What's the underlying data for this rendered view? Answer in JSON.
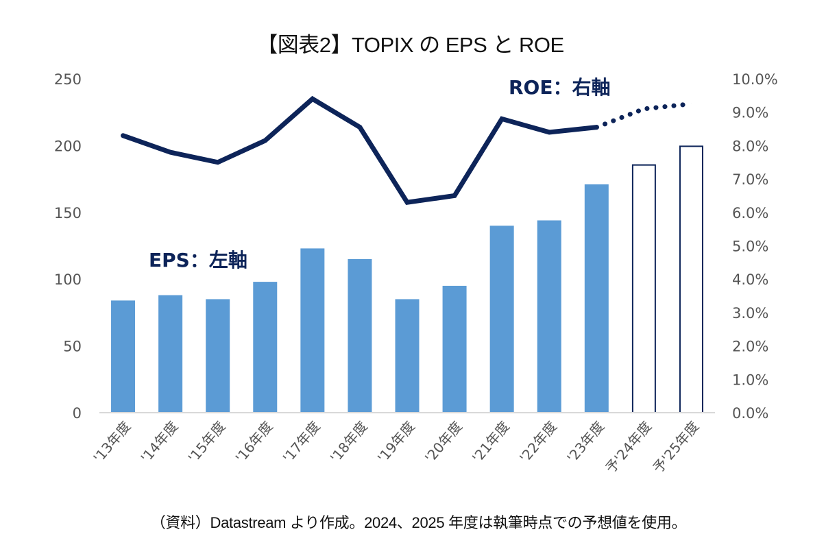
{
  "title": "【図表2】TOPIX の EPS と ROE",
  "source_note": "（資料）Datastream より作成。2024、2025 年度は執筆時点での予想値を使用。",
  "colors": {
    "bar_actual": "#5b9bd5",
    "bar_forecast_stroke": "#0d2459",
    "line": "#0d2459",
    "axis": "#d9d9d9",
    "tick_text": "#555555",
    "annotation": "#0d2459"
  },
  "chart_data": {
    "type": "bar+line",
    "title": "【図表2】TOPIX の EPS と ROE",
    "categories": [
      "'13年度",
      "'14年度",
      "'15年度",
      "'16年度",
      "'17年度",
      "'18年度",
      "'19年度",
      "'20年度",
      "'21年度",
      "'22年度",
      "'23年度",
      "予'24年度",
      "予'25年度"
    ],
    "forecast_flags": [
      false,
      false,
      false,
      false,
      false,
      false,
      false,
      false,
      false,
      false,
      false,
      true,
      true
    ],
    "series": [
      {
        "name": "EPS",
        "type": "bar",
        "axis": "left",
        "annotation": "EPS：左軸",
        "values": [
          84,
          88,
          85,
          98,
          123,
          115,
          85,
          95,
          140,
          144,
          171,
          186,
          200
        ]
      },
      {
        "name": "ROE",
        "type": "line",
        "axis": "right",
        "unit": "%",
        "annotation": "ROE：右軸",
        "values": [
          8.3,
          7.8,
          7.5,
          8.15,
          9.4,
          8.55,
          6.3,
          6.5,
          8.8,
          8.4,
          8.55,
          9.1,
          9.25
        ]
      }
    ],
    "left_axis": {
      "ylim": [
        0,
        250
      ],
      "ticks": [
        "0",
        "50",
        "100",
        "150",
        "200",
        "250"
      ],
      "tick_values": [
        0,
        50,
        100,
        150,
        200,
        250
      ]
    },
    "right_axis": {
      "ylim": [
        0,
        10
      ],
      "ticks": [
        "0.0%",
        "1.0%",
        "2.0%",
        "3.0%",
        "4.0%",
        "5.0%",
        "6.0%",
        "7.0%",
        "8.0%",
        "9.0%",
        "10.0%"
      ],
      "tick_values": [
        0,
        1,
        2,
        3,
        4,
        5,
        6,
        7,
        8,
        9,
        10
      ]
    },
    "xlabel": "",
    "ylabel": "",
    "grid": false,
    "legend": "none (inline annotations)"
  }
}
